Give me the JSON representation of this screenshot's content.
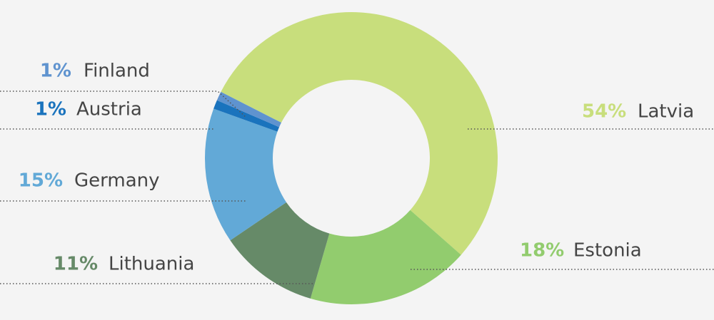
{
  "chart_data": {
    "type": "donut",
    "categories": [
      "Latvia",
      "Estonia",
      "Lithuania",
      "Germany",
      "Austria",
      "Finland"
    ],
    "values": [
      54,
      18,
      11,
      15,
      1,
      1
    ],
    "value_labels": [
      "54%",
      "18%",
      "11%",
      "15%",
      "1%",
      "1%"
    ],
    "colors": [
      "#c8de7c",
      "#92cc6e",
      "#668a68",
      "#62a9d7",
      "#1a73bd",
      "#5f93cf"
    ]
  }
}
